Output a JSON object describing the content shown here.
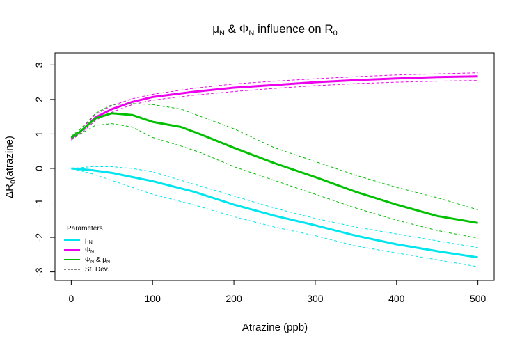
{
  "chart_data": {
    "type": "line",
    "title": {
      "mu": "μ",
      "mu_sub": "N",
      "and": " & ",
      "phi": "Φ",
      "phi_sub": "N",
      "rest": " influence on R",
      "r_sub": "0"
    },
    "xlabel": "Atrazine (ppb)",
    "ylabel": {
      "prefix": "ΔR",
      "sub": "0",
      "rest": "(atrazine)"
    },
    "xlim": [
      -20,
      520
    ],
    "ylim": [
      -3.25,
      3.35
    ],
    "xticks": [
      0,
      100,
      200,
      300,
      400,
      500
    ],
    "yticks": [
      -3,
      -2,
      -1,
      0,
      1,
      2,
      3
    ],
    "legend": {
      "title": "Parameters",
      "position": "bottom-left",
      "entries": [
        {
          "label": "μ",
          "sub": "N",
          "suffix": "",
          "color": "#00e5ee",
          "dashed": false
        },
        {
          "label": "Φ",
          "sub": "N",
          "suffix": "",
          "color": "#ee00ee",
          "dashed": false
        },
        {
          "label": "Φ",
          "sub": "N",
          "suffix": " & μ",
          "sub2": "N",
          "color": "#00c000",
          "dashed": false
        },
        {
          "label": "St. Dev.",
          "sub": "",
          "suffix": "",
          "color": "#000000",
          "dashed": true
        }
      ]
    },
    "series": [
      {
        "name": "μN",
        "color": "#00e5ee",
        "width": 3,
        "dash": false,
        "x": [
          0,
          25,
          50,
          75,
          100,
          150,
          200,
          250,
          300,
          350,
          400,
          450,
          500
        ],
        "y": [
          0.0,
          -0.05,
          -0.13,
          -0.25,
          -0.37,
          -0.67,
          -1.05,
          -1.37,
          -1.65,
          -1.95,
          -2.2,
          -2.4,
          -2.58
        ]
      },
      {
        "name": "μN upper",
        "color": "#00e5ee",
        "width": 1,
        "dash": true,
        "x": [
          0,
          25,
          50,
          75,
          100,
          150,
          200,
          250,
          300,
          350,
          400,
          450,
          500
        ],
        "y": [
          0.0,
          0.05,
          0.05,
          0.0,
          -0.1,
          -0.45,
          -0.8,
          -1.15,
          -1.45,
          -1.7,
          -1.9,
          -2.1,
          -2.3
        ]
      },
      {
        "name": "μN lower",
        "color": "#00e5ee",
        "width": 1,
        "dash": true,
        "x": [
          0,
          25,
          50,
          75,
          100,
          150,
          200,
          250,
          300,
          350,
          400,
          450,
          500
        ],
        "y": [
          0.0,
          -0.15,
          -0.35,
          -0.55,
          -0.75,
          -1.05,
          -1.4,
          -1.7,
          -1.95,
          -2.25,
          -2.45,
          -2.65,
          -2.85
        ]
      },
      {
        "name": "ΦN",
        "color": "#ee00ee",
        "width": 3,
        "dash": false,
        "x": [
          0,
          10,
          20,
          30,
          50,
          75,
          100,
          150,
          200,
          250,
          300,
          350,
          400,
          450,
          500
        ],
        "y": [
          0.87,
          1.05,
          1.25,
          1.48,
          1.72,
          1.93,
          2.07,
          2.22,
          2.34,
          2.42,
          2.5,
          2.56,
          2.61,
          2.65,
          2.67
        ]
      },
      {
        "name": "ΦN upper",
        "color": "#ee00ee",
        "width": 1,
        "dash": true,
        "x": [
          0,
          10,
          20,
          30,
          50,
          75,
          100,
          150,
          200,
          250,
          300,
          350,
          400,
          450,
          500
        ],
        "y": [
          0.93,
          1.12,
          1.32,
          1.57,
          1.82,
          2.02,
          2.15,
          2.32,
          2.45,
          2.53,
          2.6,
          2.66,
          2.71,
          2.74,
          2.77
        ]
      },
      {
        "name": "ΦN lower",
        "color": "#ee00ee",
        "width": 1,
        "dash": true,
        "x": [
          0,
          10,
          20,
          30,
          50,
          75,
          100,
          150,
          200,
          250,
          300,
          350,
          400,
          450,
          500
        ],
        "y": [
          0.82,
          0.99,
          1.18,
          1.4,
          1.63,
          1.85,
          1.98,
          2.12,
          2.23,
          2.32,
          2.4,
          2.46,
          2.5,
          2.53,
          2.55
        ]
      },
      {
        "name": "ΦN & μN",
        "color": "#00c000",
        "width": 3,
        "dash": false,
        "x": [
          0,
          10,
          20,
          30,
          50,
          75,
          100,
          135,
          160,
          200,
          250,
          300,
          350,
          400,
          450,
          500
        ],
        "y": [
          0.9,
          1.05,
          1.25,
          1.45,
          1.6,
          1.55,
          1.35,
          1.2,
          0.98,
          0.6,
          0.15,
          -0.25,
          -0.68,
          -1.05,
          -1.38,
          -1.58
        ]
      },
      {
        "name": "ΦN & μN upper",
        "color": "#00c000",
        "width": 1,
        "dash": true,
        "x": [
          0,
          10,
          20,
          30,
          50,
          75,
          100,
          135,
          160,
          200,
          250,
          300,
          350,
          400,
          450,
          500
        ],
        "y": [
          0.93,
          1.12,
          1.35,
          1.6,
          1.85,
          1.88,
          1.85,
          1.72,
          1.5,
          1.15,
          0.6,
          0.2,
          -0.2,
          -0.55,
          -0.85,
          -1.2
        ]
      },
      {
        "name": "ΦN & μN lower",
        "color": "#00c000",
        "width": 1,
        "dash": true,
        "x": [
          0,
          10,
          20,
          30,
          50,
          75,
          100,
          135,
          160,
          200,
          250,
          300,
          350,
          400,
          450,
          500
        ],
        "y": [
          0.85,
          0.98,
          1.12,
          1.25,
          1.3,
          1.2,
          0.9,
          0.65,
          0.45,
          0.05,
          -0.35,
          -0.75,
          -1.15,
          -1.5,
          -1.8,
          -2.02
        ]
      }
    ]
  }
}
